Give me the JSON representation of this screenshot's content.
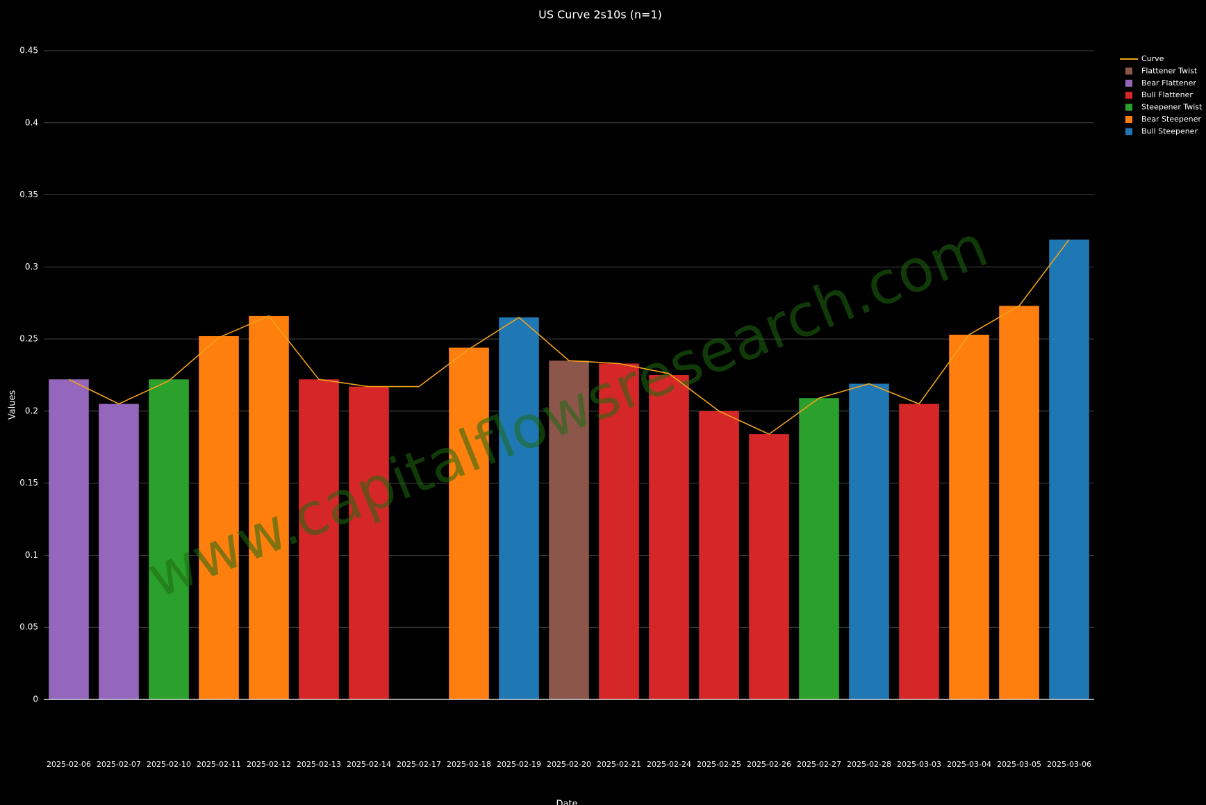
{
  "chart_data": {
    "type": "bar",
    "title": "US Curve 2s10s (n=1)",
    "x_label": "Date",
    "y_label": "Values",
    "watermark": "www.capitalflowsresearch.com",
    "categories": [
      "2025-02-06",
      "2025-02-07",
      "2025-02-10",
      "2025-02-11",
      "2025-02-12",
      "2025-02-13",
      "2025-02-14",
      "2025-02-17",
      "2025-02-18",
      "2025-02-19",
      "2025-02-20",
      "2025-02-21",
      "2025-02-24",
      "2025-02-25",
      "2025-02-26",
      "2025-02-27",
      "2025-02-28",
      "2025-03-03",
      "2025-03-04",
      "2025-03-05",
      "2025-03-06"
    ],
    "series": [
      {
        "name": "Curve",
        "type": "line",
        "color": "#f0a21a",
        "values": [
          0.222,
          0.205,
          0.221,
          0.251,
          0.266,
          0.222,
          0.217,
          0.217,
          0.243,
          0.265,
          0.235,
          0.233,
          0.226,
          0.2,
          0.184,
          0.209,
          0.219,
          0.205,
          0.253,
          0.273,
          0.319
        ]
      },
      {
        "name": "Flattener Twist",
        "type": "bar",
        "color": "#8c564b",
        "values": [
          null,
          null,
          null,
          null,
          null,
          null,
          null,
          null,
          null,
          null,
          0.235,
          null,
          null,
          null,
          null,
          null,
          null,
          null,
          null,
          null,
          null
        ]
      },
      {
        "name": "Bear Flattener",
        "type": "bar",
        "color": "#9467bd",
        "values": [
          0.222,
          0.205,
          null,
          null,
          null,
          null,
          null,
          null,
          null,
          null,
          null,
          null,
          null,
          null,
          null,
          null,
          null,
          null,
          null,
          null,
          null
        ]
      },
      {
        "name": "Bull Flattener",
        "type": "bar",
        "color": "#d62728",
        "values": [
          null,
          null,
          null,
          null,
          null,
          0.222,
          0.217,
          null,
          null,
          null,
          null,
          0.233,
          0.225,
          0.2,
          0.184,
          null,
          null,
          0.205,
          null,
          null,
          null
        ]
      },
      {
        "name": "Steepener Twist",
        "type": "bar",
        "color": "#2ca02c",
        "values": [
          null,
          null,
          0.222,
          null,
          null,
          null,
          null,
          null,
          null,
          null,
          null,
          null,
          null,
          null,
          null,
          0.209,
          null,
          null,
          null,
          null,
          null
        ]
      },
      {
        "name": "Bear Steepener",
        "type": "bar",
        "color": "#ff7f0e",
        "values": [
          null,
          null,
          null,
          0.252,
          0.266,
          null,
          null,
          null,
          0.244,
          null,
          null,
          null,
          null,
          null,
          null,
          null,
          null,
          null,
          0.253,
          0.273,
          null
        ]
      },
      {
        "name": "Bull Steepener",
        "type": "bar",
        "color": "#1f77b4",
        "values": [
          null,
          null,
          null,
          null,
          null,
          null,
          null,
          null,
          null,
          0.265,
          null,
          null,
          null,
          null,
          null,
          null,
          0.219,
          null,
          null,
          null,
          0.319
        ]
      }
    ],
    "ylim": [
      0,
      0.45
    ],
    "yticks": [
      0,
      0.05,
      0.1,
      0.15,
      0.2,
      0.25,
      0.3,
      0.35,
      0.4,
      0.45
    ],
    "grid": true
  }
}
